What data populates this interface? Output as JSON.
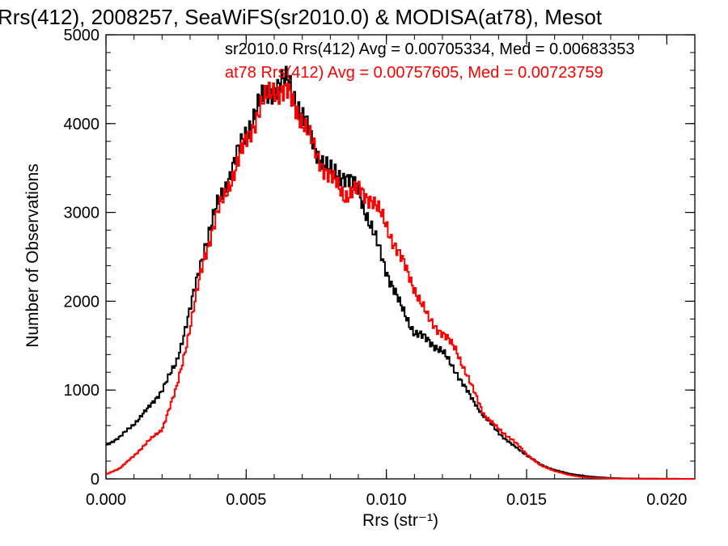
{
  "chart_data": {
    "type": "line",
    "step": true,
    "title": "Rrs(412), 2008257, SeaWiFS(sr2010.0) & MODISA(at78), Mesot",
    "xlabel": "Rrs (str⁻¹)",
    "ylabel": "Number of Observations",
    "xlim": [
      0.0,
      0.021
    ],
    "ylim": [
      0,
      5000
    ],
    "x_ticks": [
      0.0,
      0.005,
      0.01,
      0.015,
      0.02
    ],
    "x_tick_labels": [
      "0.000",
      "0.005",
      "0.010",
      "0.015",
      "0.020"
    ],
    "y_ticks": [
      0,
      1000,
      2000,
      3000,
      4000,
      5000
    ],
    "y_tick_labels": [
      "0",
      "1000",
      "2000",
      "3000",
      "4000",
      "5000"
    ],
    "grid": false,
    "legend_position": "top",
    "series": [
      {
        "name": "sr2010.0",
        "label": "sr2010.0 Rrs(412) Avg = 0.00705334, Med = 0.00683353",
        "color": "#000000",
        "x": [
          0.0,
          0.0005,
          0.001,
          0.0015,
          0.002,
          0.0025,
          0.003,
          0.0035,
          0.004,
          0.0045,
          0.005,
          0.0055,
          0.006,
          0.0065,
          0.007,
          0.0075,
          0.008,
          0.0085,
          0.009,
          0.0095,
          0.01,
          0.0105,
          0.011,
          0.0115,
          0.012,
          0.0125,
          0.013,
          0.0135,
          0.014,
          0.0145,
          0.015,
          0.0155,
          0.016,
          0.0165,
          0.017,
          0.0175,
          0.018,
          0.0185,
          0.019,
          0.0195,
          0.02,
          0.021
        ],
        "y": [
          380,
          470,
          620,
          790,
          1000,
          1300,
          1900,
          2600,
          3100,
          3500,
          3900,
          4250,
          4420,
          4480,
          4100,
          3700,
          3450,
          3420,
          3250,
          2800,
          2350,
          1950,
          1650,
          1560,
          1430,
          1200,
          920,
          700,
          520,
          380,
          270,
          160,
          100,
          60,
          35,
          20,
          10,
          5,
          3,
          2,
          1,
          0
        ]
      },
      {
        "name": "at78",
        "label": "at78 Rrs(412) Avg = 0.00757605, Med = 0.00723759",
        "color": "#ff0000",
        "x": [
          0.0,
          0.0005,
          0.001,
          0.0015,
          0.002,
          0.0025,
          0.003,
          0.0035,
          0.004,
          0.0045,
          0.005,
          0.0055,
          0.006,
          0.0065,
          0.007,
          0.0075,
          0.008,
          0.0085,
          0.009,
          0.0095,
          0.01,
          0.0105,
          0.011,
          0.0115,
          0.012,
          0.0125,
          0.013,
          0.0135,
          0.014,
          0.0145,
          0.015,
          0.0155,
          0.016,
          0.0165,
          0.017,
          0.0175,
          0.018,
          0.0185,
          0.019,
          0.0195,
          0.02,
          0.021
        ],
        "y": [
          50,
          120,
          260,
          420,
          560,
          1000,
          1700,
          2500,
          3000,
          3400,
          3800,
          4180,
          4400,
          4330,
          4050,
          3650,
          3400,
          3200,
          3250,
          3150,
          2850,
          2500,
          2150,
          1800,
          1640,
          1450,
          1070,
          720,
          560,
          440,
          280,
          150,
          90,
          45,
          20,
          10,
          6,
          3,
          2,
          1,
          1,
          0
        ]
      }
    ]
  }
}
